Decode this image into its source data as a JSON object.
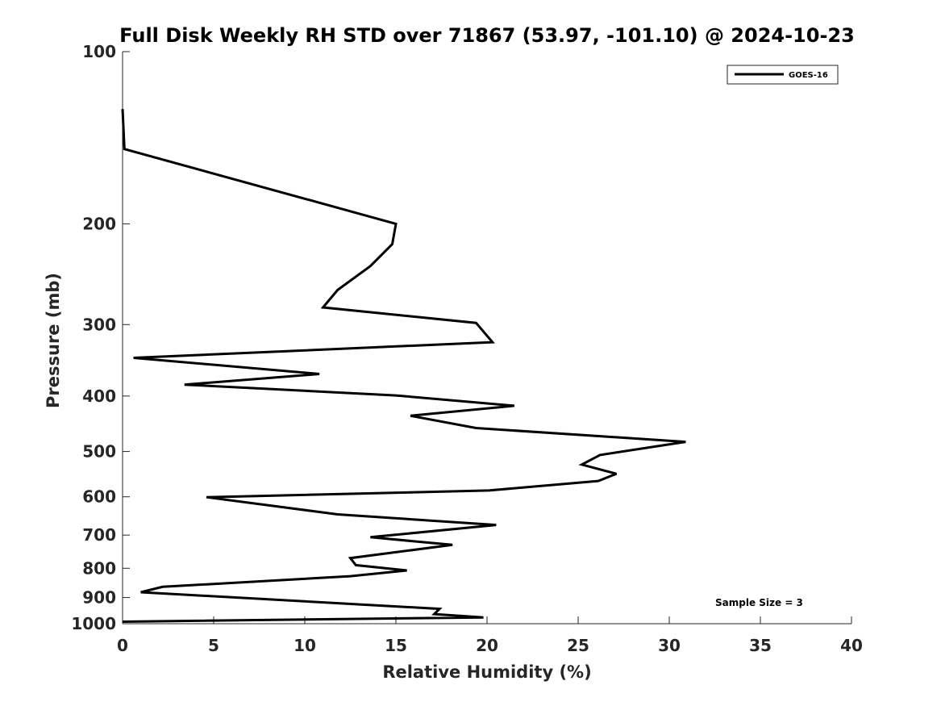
{
  "chart_data": {
    "type": "line",
    "title": "Full Disk Weekly RH STD over 71867 (53.97, -101.10) @ 2024-10-23",
    "xlabel": "Relative Humidity (%)",
    "ylabel": "Pressure (mb)",
    "xlim": [
      0,
      40
    ],
    "ylim": [
      100,
      1000
    ],
    "yscale": "log",
    "y_reversed": true,
    "x_ticks": [
      "0",
      "5",
      "10",
      "15",
      "20",
      "25",
      "30",
      "35",
      "40"
    ],
    "x_tick_values": [
      0,
      5,
      10,
      15,
      20,
      25,
      30,
      35,
      40
    ],
    "y_ticks": [
      "100",
      "200",
      "300",
      "400",
      "500",
      "600",
      "700",
      "800",
      "900",
      "1000"
    ],
    "y_tick_values": [
      100,
      200,
      300,
      400,
      500,
      600,
      700,
      800,
      900,
      1000
    ],
    "legend_position": "top-right",
    "grid": false,
    "annotation": "Sample Size = 3",
    "series": [
      {
        "name": "GOES-16",
        "color": "#000000",
        "points": [
          [
            0.0,
            126
          ],
          [
            0.1,
            148
          ],
          [
            15.0,
            200
          ],
          [
            14.8,
            217
          ],
          [
            13.6,
            237
          ],
          [
            11.8,
            261
          ],
          [
            11.0,
            280
          ],
          [
            19.4,
            298
          ],
          [
            20.3,
            322
          ],
          [
            0.6,
            343
          ],
          [
            10.8,
            366
          ],
          [
            3.4,
            382
          ],
          [
            15.0,
            399
          ],
          [
            21.5,
            416
          ],
          [
            15.8,
            433
          ],
          [
            19.4,
            455
          ],
          [
            30.9,
            481
          ],
          [
            26.2,
            507
          ],
          [
            25.2,
            527
          ],
          [
            27.1,
            547
          ],
          [
            26.1,
            563
          ],
          [
            20.1,
            585
          ],
          [
            4.6,
            601
          ],
          [
            11.8,
            644
          ],
          [
            20.5,
            672
          ],
          [
            13.6,
            706
          ],
          [
            18.1,
            728
          ],
          [
            12.5,
            768
          ],
          [
            12.8,
            790
          ],
          [
            15.6,
            807
          ],
          [
            12.5,
            826
          ],
          [
            2.2,
            862
          ],
          [
            1.0,
            881
          ],
          [
            17.4,
            942
          ],
          [
            17.1,
            962
          ],
          [
            19.8,
            975
          ],
          [
            0.0,
            992
          ]
        ]
      }
    ]
  }
}
